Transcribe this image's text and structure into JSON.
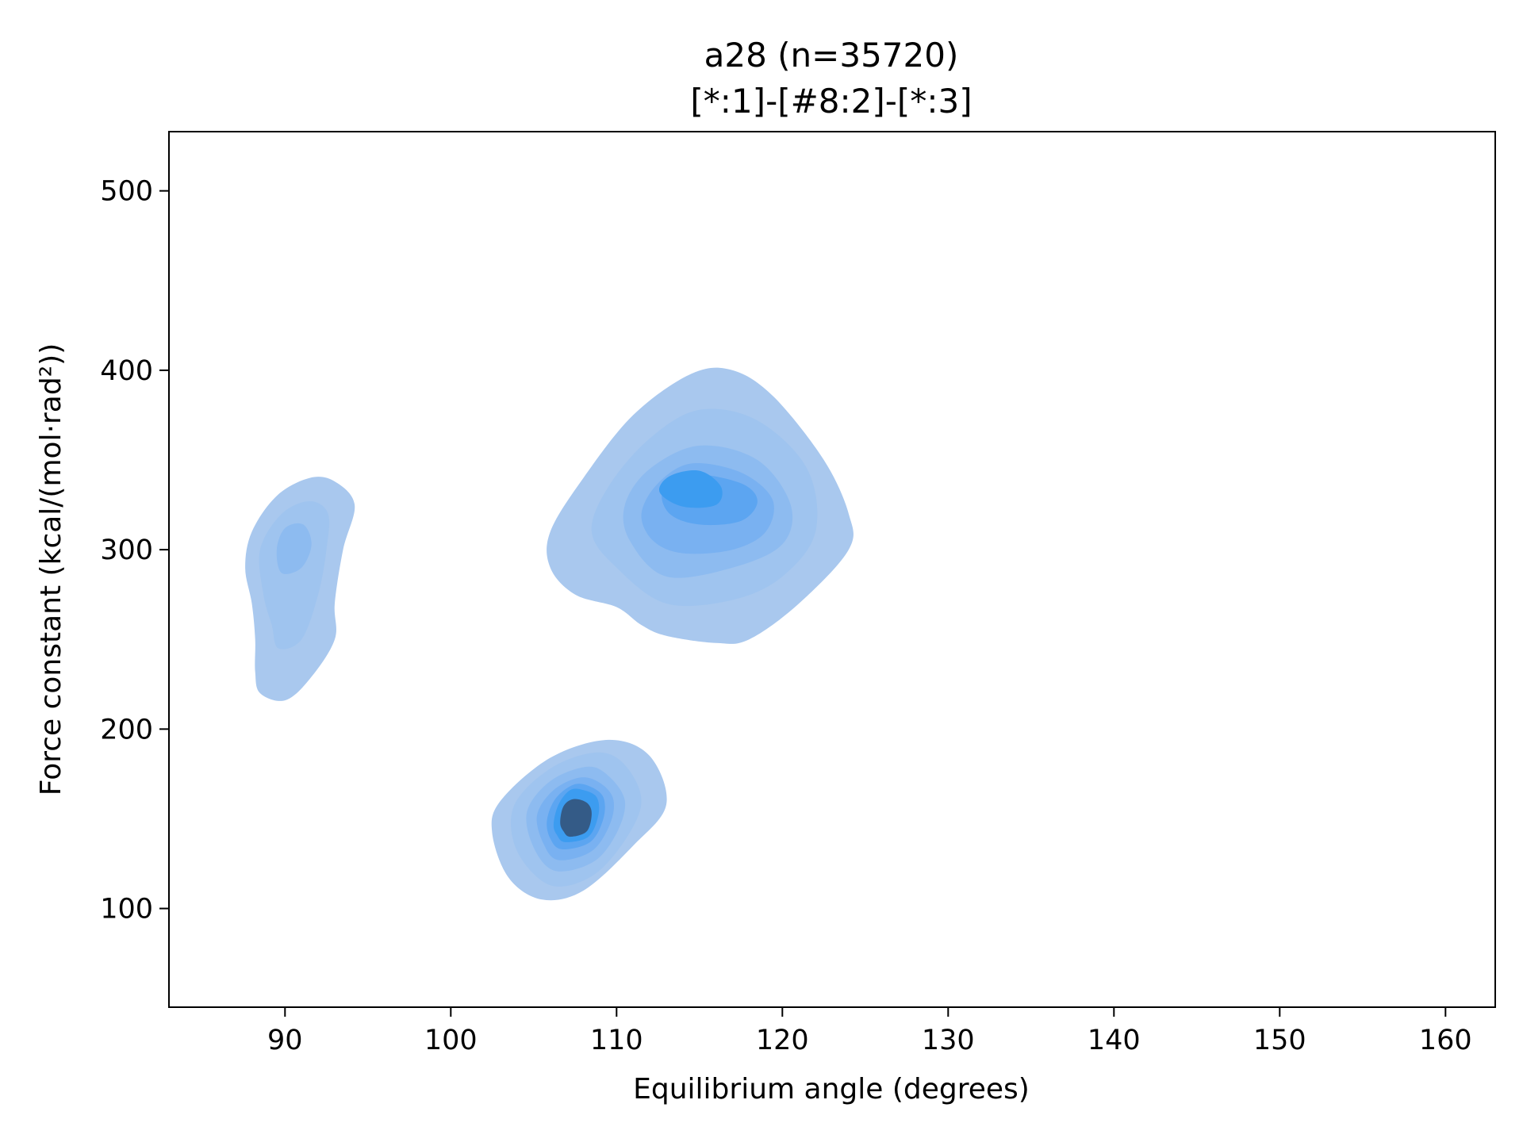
{
  "chart_data": {
    "type": "kde_contour",
    "title_lines": [
      "a28 (n=35720)",
      "[*:1]-[#8:2]-[*:3]"
    ],
    "xlabel": "Equilibrium angle (degrees)",
    "ylabel": "Force constant (kcal/(mol·rad²))",
    "xlim": [
      83,
      163
    ],
    "ylim": [
      45,
      533
    ],
    "x_ticks": [
      90,
      100,
      110,
      120,
      130,
      140,
      150,
      160
    ],
    "y_ticks": [
      100,
      200,
      300,
      400,
      500
    ],
    "x_tick_labels": [
      "90",
      "100",
      "110",
      "120",
      "130",
      "140",
      "150",
      "160"
    ],
    "y_tick_labels": [
      "100",
      "200",
      "300",
      "400",
      "500"
    ],
    "grid": false,
    "legend": "none",
    "colors": {
      "level_1": "#a9c8ee",
      "level_2": "#9fc4ef",
      "level_3": "#8dbbf0",
      "level_4": "#79b1f1",
      "level_5": "#5ca5f1",
      "level_6": "#3c9cf0",
      "core": "#345b87"
    },
    "clusters": [
      {
        "id": "cluster-a",
        "center": [
          90.5,
          285
        ],
        "levels": [
          {
            "level": 1,
            "points": [
              [
                88.5,
                220
              ],
              [
                90,
                216
              ],
              [
                91.5,
                228
              ],
              [
                93,
                250
              ],
              [
                93,
                270
              ],
              [
                93.5,
                300
              ],
              [
                94.2,
                325
              ],
              [
                93,
                338
              ],
              [
                91.5,
                340
              ],
              [
                89.5,
                330
              ],
              [
                88,
                310
              ],
              [
                87.6,
                290
              ],
              [
                88,
                270
              ],
              [
                88.2,
                250
              ],
              [
                88.2,
                232
              ]
            ]
          },
          {
            "level": 2,
            "points": [
              [
                89.6,
                245
              ],
              [
                91,
                250
              ],
              [
                92,
                275
              ],
              [
                92.5,
                300
              ],
              [
                92.6,
                320
              ],
              [
                91.5,
                327
              ],
              [
                89.8,
                320
              ],
              [
                88.5,
                300
              ],
              [
                88.7,
                275
              ],
              [
                89.2,
                258
              ]
            ]
          },
          {
            "level": 3,
            "points": [
              [
                89.8,
                287
              ],
              [
                91,
                290
              ],
              [
                91.6,
                303
              ],
              [
                91.1,
                314
              ],
              [
                90,
                312
              ],
              [
                89.5,
                300
              ]
            ]
          }
        ]
      },
      {
        "id": "cluster-b",
        "center": [
          115.5,
          325
        ],
        "levels": [
          {
            "level": 1,
            "points": [
              [
                113,
                252
              ],
              [
                116,
                248
              ],
              [
                118,
                250
              ],
              [
                121,
                270
              ],
              [
                124,
                300
              ],
              [
                124,
                320
              ],
              [
                122.5,
                350
              ],
              [
                119.5,
                385
              ],
              [
                117,
                400
              ],
              [
                114.5,
                398
              ],
              [
                111,
                375
              ],
              [
                108,
                340
              ],
              [
                106,
                310
              ],
              [
                106,
                290
              ],
              [
                107.5,
                275
              ],
              [
                110,
                268
              ],
              [
                111.5,
                258
              ]
            ]
          },
          {
            "level": 2,
            "points": [
              [
                113,
                270
              ],
              [
                117,
                272
              ],
              [
                120,
                285
              ],
              [
                122,
                310
              ],
              [
                121.5,
                345
              ],
              [
                118.5,
                372
              ],
              [
                115,
                378
              ],
              [
                112,
                362
              ],
              [
                109.5,
                335
              ],
              [
                108.5,
                310
              ],
              [
                110,
                290
              ]
            ]
          },
          {
            "level": 3,
            "points": [
              [
                113,
                285
              ],
              [
                117,
                290
              ],
              [
                120,
                303
              ],
              [
                120.5,
                325
              ],
              [
                118.5,
                350
              ],
              [
                115,
                358
              ],
              [
                112,
                345
              ],
              [
                110.5,
                325
              ],
              [
                110.8,
                305
              ]
            ]
          },
          {
            "level": 4,
            "points": [
              [
                114,
                298
              ],
              [
                117,
                300
              ],
              [
                119,
                310
              ],
              [
                119.4,
                328
              ],
              [
                117.5,
                343
              ],
              [
                114.5,
                348
              ],
              [
                112.5,
                337
              ],
              [
                111.5,
                320
              ],
              [
                112.2,
                305
              ]
            ]
          },
          {
            "level": 5,
            "points": [
              [
                115,
                314
              ],
              [
                117.5,
                316
              ],
              [
                118.5,
                327
              ],
              [
                117.5,
                337
              ],
              [
                114.5,
                342
              ],
              [
                112.8,
                333
              ],
              [
                113.2,
                320
              ]
            ]
          },
          {
            "level": 6,
            "points": [
              [
                114,
                324
              ],
              [
                116,
                325
              ],
              [
                116.3,
                335
              ],
              [
                115,
                344
              ],
              [
                113.2,
                341
              ],
              [
                112.6,
                332
              ]
            ]
          }
        ]
      },
      {
        "id": "cluster-c",
        "center": [
          107.5,
          148
        ],
        "levels": [
          {
            "level": 1,
            "points": [
              [
                105.5,
                105
              ],
              [
                108,
                110
              ],
              [
                111,
                135
              ],
              [
                113,
                158
              ],
              [
                112,
                185
              ],
              [
                109.5,
                194
              ],
              [
                106,
                184
              ],
              [
                103,
                160
              ],
              [
                102.5,
                142
              ],
              [
                103.5,
                117
              ]
            ]
          },
          {
            "level": 2,
            "points": [
              [
                106,
                113
              ],
              [
                108.5,
                118
              ],
              [
                110.5,
                138
              ],
              [
                111.5,
                160
              ],
              [
                110.5,
                180
              ],
              [
                108.8,
                187
              ],
              [
                106,
                178
              ],
              [
                103.8,
                157
              ],
              [
                104,
                132
              ]
            ]
          },
          {
            "level": 3,
            "points": [
              [
                106.3,
                121
              ],
              [
                108.6,
                126
              ],
              [
                110,
                142
              ],
              [
                110.5,
                160
              ],
              [
                109.5,
                174
              ],
              [
                108.2,
                179
              ],
              [
                106,
                171
              ],
              [
                104.6,
                154
              ],
              [
                105,
                134
              ]
            ]
          },
          {
            "level": 4,
            "points": [
              [
                106.5,
                127
              ],
              [
                108.5,
                132
              ],
              [
                109.6,
                147
              ],
              [
                109.8,
                161
              ],
              [
                109,
                170
              ],
              [
                107.8,
                173
              ],
              [
                106.2,
                166
              ],
              [
                105.2,
                152
              ],
              [
                105.6,
                136
              ]
            ]
          },
          {
            "level": 5,
            "points": [
              [
                106.7,
                133
              ],
              [
                108.4,
                137
              ],
              [
                109.2,
                150
              ],
              [
                109.2,
                162
              ],
              [
                108.4,
                168
              ],
              [
                107.4,
                169
              ],
              [
                106.3,
                161
              ],
              [
                105.8,
                149
              ],
              [
                106,
                139
              ]
            ]
          },
          {
            "level": 6,
            "points": [
              [
                106.9,
                137
              ],
              [
                108.3,
                140
              ],
              [
                108.9,
                152
              ],
              [
                108.8,
                162
              ],
              [
                108,
                166
              ],
              [
                107.2,
                166
              ],
              [
                106.5,
                158
              ],
              [
                106.2,
                147
              ],
              [
                106.4,
                141
              ]
            ]
          },
          {
            "level": 7,
            "points": [
              [
                107.2,
                140
              ],
              [
                108.2,
                143
              ],
              [
                108.5,
                153
              ],
              [
                108.2,
                159
              ],
              [
                107.4,
                161
              ],
              [
                106.8,
                157
              ],
              [
                106.6,
                148
              ],
              [
                106.8,
                143
              ]
            ]
          }
        ]
      }
    ]
  }
}
